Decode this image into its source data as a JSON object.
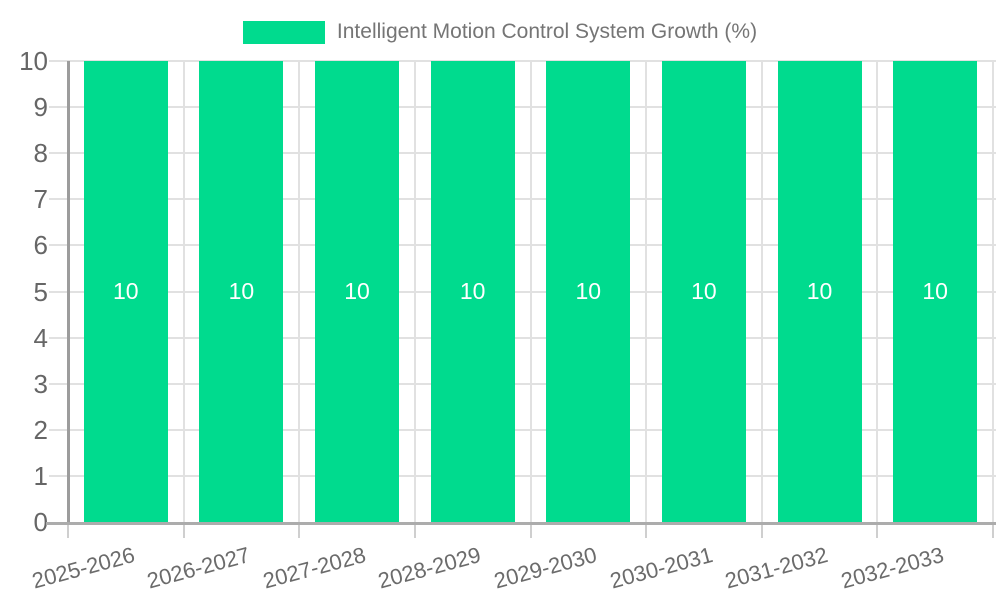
{
  "chart_data": {
    "type": "bar",
    "title": "Intelligent Motion Control System Growth (%)",
    "legend_position": "top",
    "categories": [
      "2025-2026",
      "2026-2027",
      "2027-2028",
      "2028-2029",
      "2029-2030",
      "2030-2031",
      "2031-2032",
      "2032-2033"
    ],
    "series": [
      {
        "name": "Intelligent Motion Control System Growth (%)",
        "values": [
          10,
          10,
          10,
          10,
          10,
          10,
          10,
          10
        ]
      }
    ],
    "bar_value_labels": [
      "10",
      "10",
      "10",
      "10",
      "10",
      "10",
      "10",
      "10"
    ],
    "xlabel": "",
    "ylabel": "",
    "ylim": [
      0,
      10
    ],
    "yticks": [
      0,
      1,
      2,
      3,
      4,
      5,
      6,
      7,
      8,
      9,
      10
    ],
    "grid": true
  },
  "colors": {
    "bar": "#00DB8E",
    "bar_value_text": "#ffffff",
    "gridline": "#E1E1E1",
    "y_axis_line": "#9C9C9C",
    "x_axis_line": "#ACACAC",
    "x_tick": "#CFCFCF",
    "tick_text": "#666666",
    "legend_text": "#757575"
  }
}
